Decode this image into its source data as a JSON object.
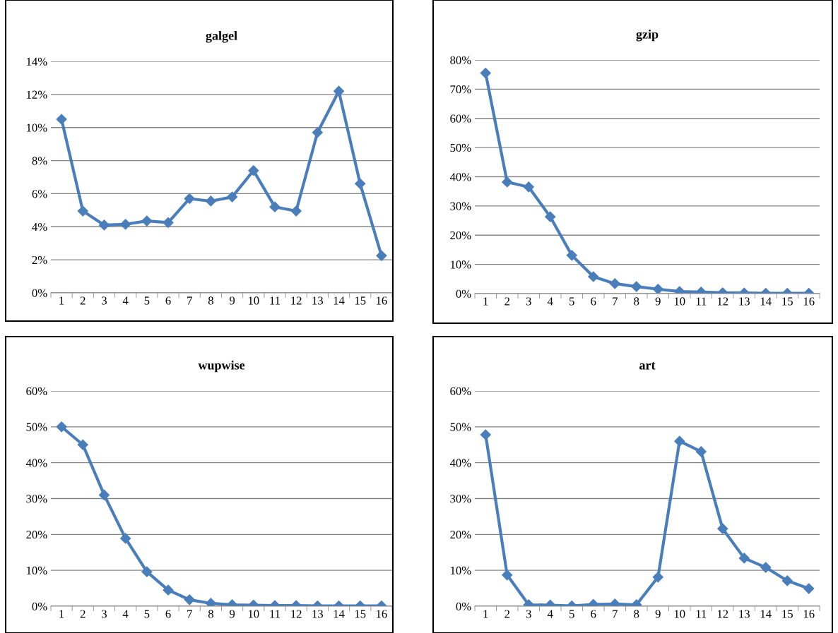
{
  "chart_data": [
    {
      "type": "line",
      "title": "galgel",
      "categories": [
        "1",
        "2",
        "3",
        "4",
        "5",
        "6",
        "7",
        "8",
        "9",
        "10",
        "11",
        "12",
        "13",
        "14",
        "15",
        "16"
      ],
      "color": "#4a7ebb",
      "marker": "diamond",
      "grid": "y",
      "values": [
        10.5,
        4.95,
        4.1,
        4.15,
        4.35,
        4.25,
        5.7,
        5.55,
        5.8,
        7.4,
        5.2,
        4.95,
        9.7,
        12.2,
        6.6,
        2.25
      ],
      "ylim": [
        0,
        14
      ],
      "yticks": [
        {
          "value": 0,
          "label": "0%"
        },
        {
          "value": 2,
          "label": "2%"
        },
        {
          "value": 4,
          "label": "4%"
        },
        {
          "value": 6,
          "label": "6%"
        },
        {
          "value": 8,
          "label": "8%"
        },
        {
          "value": 10,
          "label": "10%"
        },
        {
          "value": 12,
          "label": "12%"
        },
        {
          "value": 14,
          "label": "14%"
        }
      ]
    },
    {
      "type": "line",
      "title": "gzip",
      "categories": [
        "1",
        "2",
        "3",
        "4",
        "5",
        "6",
        "7",
        "8",
        "9",
        "10",
        "11",
        "12",
        "13",
        "14",
        "15",
        "16"
      ],
      "color": "#4a7ebb",
      "marker": "diamond",
      "grid": "y",
      "values": [
        75.5,
        38.2,
        36.5,
        26.3,
        13.1,
        5.8,
        3.4,
        2.4,
        1.5,
        0.7,
        0.5,
        0.3,
        0.2,
        0.1,
        0.1,
        0.1
      ],
      "ylim": [
        0,
        80
      ],
      "yticks": [
        {
          "value": 0,
          "label": "0%"
        },
        {
          "value": 10,
          "label": "10%"
        },
        {
          "value": 20,
          "label": "20%"
        },
        {
          "value": 30,
          "label": "30%"
        },
        {
          "value": 40,
          "label": "40%"
        },
        {
          "value": 50,
          "label": "50%"
        },
        {
          "value": 60,
          "label": "60%"
        },
        {
          "value": 70,
          "label": "70%"
        },
        {
          "value": 80,
          "label": "80%"
        }
      ]
    },
    {
      "type": "line",
      "title": "wupwise",
      "categories": [
        "1",
        "2",
        "3",
        "4",
        "5",
        "6",
        "7",
        "8",
        "9",
        "10",
        "11",
        "12",
        "13",
        "14",
        "15",
        "16"
      ],
      "color": "#4a7ebb",
      "marker": "diamond",
      "grid": "y",
      "values": [
        50,
        45,
        31,
        18.9,
        9.6,
        4.5,
        1.8,
        0.8,
        0.4,
        0.3,
        0.2,
        0.2,
        0.1,
        0.1,
        0.1,
        0.1
      ],
      "ylim": [
        0,
        60
      ],
      "yticks": [
        {
          "value": 0,
          "label": "0%"
        },
        {
          "value": 10,
          "label": "10%"
        },
        {
          "value": 20,
          "label": "20%"
        },
        {
          "value": 30,
          "label": "30%"
        },
        {
          "value": 40,
          "label": "40%"
        },
        {
          "value": 50,
          "label": "50%"
        },
        {
          "value": 60,
          "label": "60%"
        }
      ]
    },
    {
      "type": "line",
      "title": "art",
      "categories": [
        "1",
        "2",
        "3",
        "4",
        "5",
        "6",
        "7",
        "8",
        "9",
        "10",
        "11",
        "12",
        "13",
        "14",
        "15",
        "16"
      ],
      "color": "#4a7ebb",
      "marker": "diamond",
      "grid": "y",
      "values": [
        47.8,
        8.7,
        0.4,
        0.3,
        0.1,
        0.5,
        0.6,
        0.4,
        8.1,
        46,
        43.1,
        21.6,
        13.4,
        10.8,
        7.1,
        4.9
      ],
      "ylim": [
        0,
        60
      ],
      "yticks": [
        {
          "value": 0,
          "label": "0%"
        },
        {
          "value": 10,
          "label": "10%"
        },
        {
          "value": 20,
          "label": "20%"
        },
        {
          "value": 30,
          "label": "30%"
        },
        {
          "value": 40,
          "label": "40%"
        },
        {
          "value": 50,
          "label": "50%"
        },
        {
          "value": 60,
          "label": "60%"
        }
      ]
    }
  ]
}
